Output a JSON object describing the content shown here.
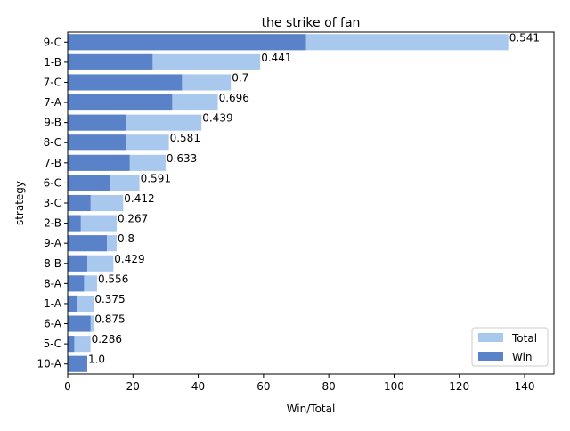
{
  "chart_data": {
    "type": "bar",
    "orientation": "horizontal",
    "title": "the strike of fan",
    "xlabel": "Win/Total",
    "ylabel": "strategy",
    "xlim": [
      0,
      149
    ],
    "xticks": [
      0,
      20,
      40,
      60,
      80,
      100,
      120,
      140
    ],
    "categories": [
      "9-C",
      "1-B",
      "7-C",
      "7-A",
      "9-B",
      "8-C",
      "7-B",
      "6-C",
      "3-C",
      "2-B",
      "9-A",
      "8-B",
      "8-A",
      "1-A",
      "6-A",
      "5-C",
      "10-A"
    ],
    "series": [
      {
        "name": "Total",
        "color": "#a8c8ee",
        "values": [
          135,
          59,
          50,
          46,
          41,
          31,
          30,
          22,
          17,
          15,
          15,
          14,
          9,
          8,
          8,
          7,
          6
        ]
      },
      {
        "name": "Win",
        "color": "#5a82c8",
        "values": [
          73,
          26,
          35,
          32,
          18,
          18,
          19,
          13,
          7,
          4,
          12,
          6,
          5,
          3,
          7,
          2,
          6
        ]
      }
    ],
    "data_labels": [
      "0.541",
      "0.441",
      "0.7",
      "0.696",
      "0.439",
      "0.581",
      "0.633",
      "0.591",
      "0.412",
      "0.267",
      "0.8",
      "0.429",
      "0.556",
      "0.375",
      "0.875",
      "0.286",
      "1.0"
    ],
    "legend": {
      "position": "lower-right",
      "entries": [
        "Total",
        "Win"
      ]
    },
    "grid": false
  }
}
